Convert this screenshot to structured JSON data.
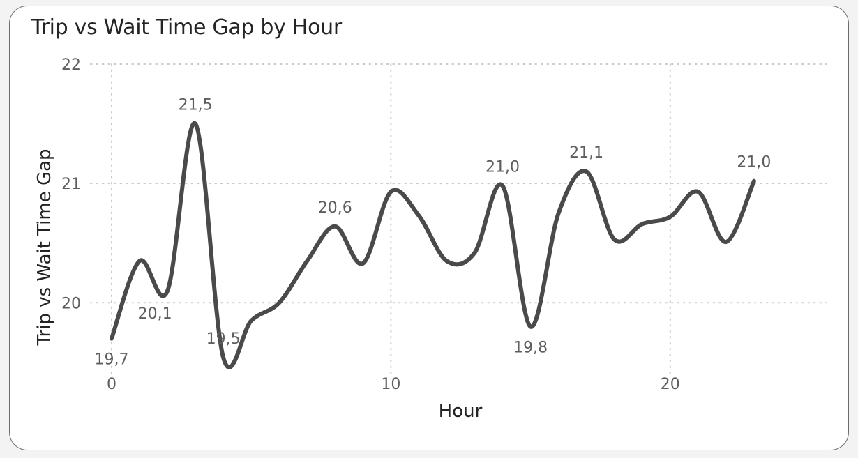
{
  "chart_data": {
    "type": "line",
    "title": "Trip vs Wait Time Gap by Hour",
    "xlabel": "Hour",
    "ylabel": "Trip vs Wait Time Gap",
    "x": [
      0,
      1,
      2,
      3,
      4,
      5,
      6,
      7,
      8,
      9,
      10,
      11,
      12,
      13,
      14,
      15,
      16,
      17,
      18,
      19,
      20,
      21,
      22,
      23
    ],
    "y": [
      19.7,
      20.35,
      20.1,
      21.5,
      19.54,
      19.85,
      20.0,
      20.35,
      20.64,
      20.33,
      20.93,
      20.73,
      20.35,
      20.42,
      20.98,
      19.8,
      20.75,
      21.1,
      20.53,
      20.66,
      20.72,
      20.93,
      20.51,
      21.02
    ],
    "xlim": [
      0,
      25.6
    ],
    "ylim": [
      19.4,
      22
    ],
    "xticks": [
      0,
      10,
      20
    ],
    "xtick_labels": [
      "0",
      "10",
      "20"
    ],
    "yticks": [
      20,
      21,
      22
    ],
    "ytick_labels": [
      "20",
      "21",
      "22"
    ],
    "data_labels": [
      {
        "x": 0,
        "y": 19.7,
        "text": "19,7",
        "pos": "below"
      },
      {
        "x": 2,
        "y": 20.1,
        "text": "20,1",
        "pos": "below-left"
      },
      {
        "x": 3,
        "y": 21.5,
        "text": "21,5",
        "pos": "above"
      },
      {
        "x": 4,
        "y": 19.54,
        "text": "19,5",
        "pos": "above"
      },
      {
        "x": 8,
        "y": 20.64,
        "text": "20,6",
        "pos": "above"
      },
      {
        "x": 14,
        "y": 20.98,
        "text": "21,0",
        "pos": "above"
      },
      {
        "x": 15,
        "y": 19.8,
        "text": "19,8",
        "pos": "below"
      },
      {
        "x": 17,
        "y": 21.1,
        "text": "21,1",
        "pos": "above"
      },
      {
        "x": 23,
        "y": 21.02,
        "text": "21,0",
        "pos": "above"
      }
    ],
    "grid": true,
    "line_color": "#4a4a4a"
  }
}
